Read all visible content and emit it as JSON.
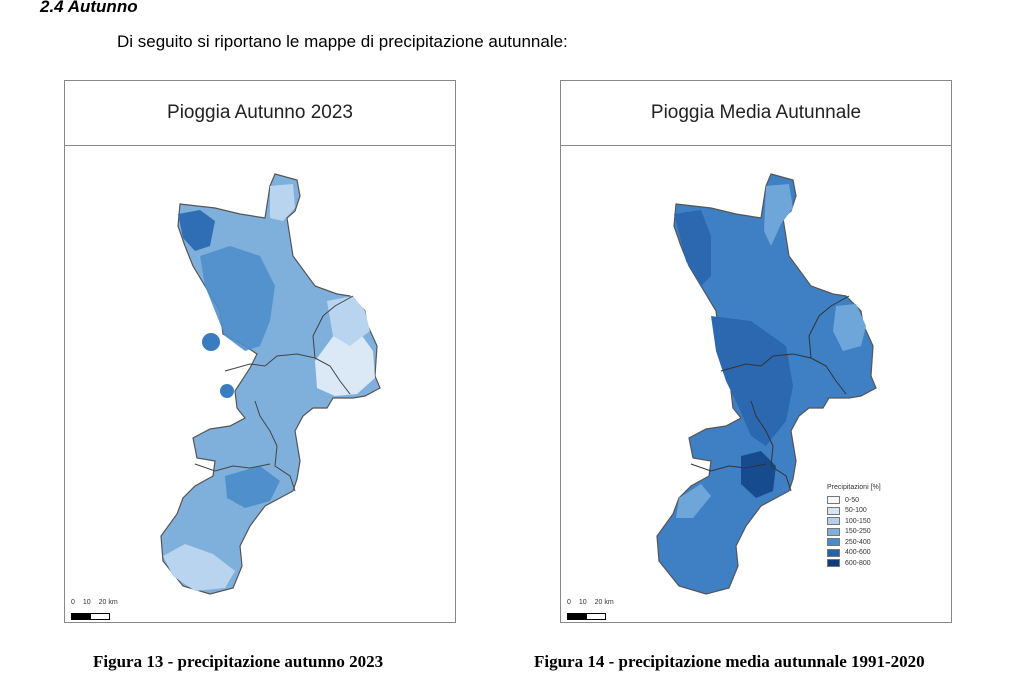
{
  "section": {
    "title": "2.4 Autunno",
    "intro": "Di seguito si riportano le mappe di precipitazione autunnale:"
  },
  "maps": [
    {
      "title": "Pioggia Autunno 2023",
      "scale_labels": [
        "0",
        "10",
        "20 km"
      ],
      "caption": "Figura 13 - precipitazione autunno 2023",
      "fill_colors": {
        "base": "#7fb0dc",
        "mid": "#4f8fcb",
        "light": "#b9d4ee",
        "pale": "#dbe9f7",
        "dark": "#2f6db4"
      }
    },
    {
      "title": "Pioggia Media Autunnale",
      "scale_labels": [
        "0",
        "10",
        "20 km"
      ],
      "caption": "Figura 14 - precipitazione media autunnale 1991-2020",
      "fill_colors": {
        "base": "#3f80c4",
        "mid": "#2b68b0",
        "light": "#6ea6d9",
        "dark": "#164b8e"
      },
      "legend": {
        "title": "Precipitazioni [%]",
        "items": [
          {
            "label": "0-50",
            "color": "#f4f8fd"
          },
          {
            "label": "50-100",
            "color": "#d7e6f5"
          },
          {
            "label": "100-150",
            "color": "#b3cfeb"
          },
          {
            "label": "150-250",
            "color": "#7fb0dc"
          },
          {
            "label": "250-400",
            "color": "#4a8ccb"
          },
          {
            "label": "400-600",
            "color": "#2363ad"
          },
          {
            "label": "600-800",
            "color": "#0f3d7a"
          }
        ]
      }
    }
  ]
}
